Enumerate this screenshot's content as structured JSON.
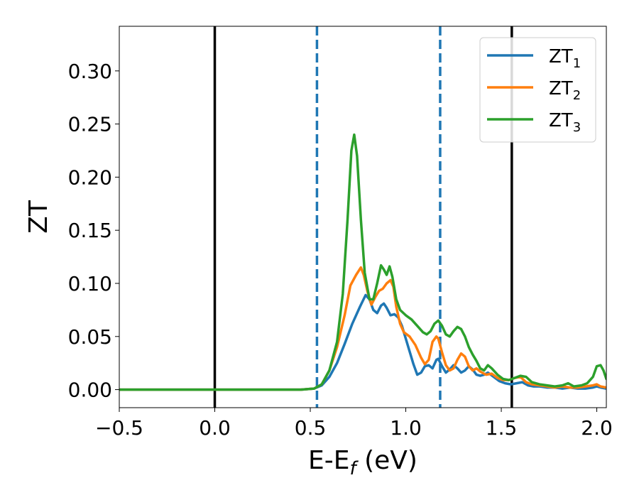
{
  "chart_data": {
    "type": "line",
    "title": "",
    "xlabel": {
      "main": "E-E",
      "sub": "f",
      "suffix": " (eV)"
    },
    "ylabel": "ZT",
    "xlim": [
      -0.5,
      2.05
    ],
    "ylim": [
      -0.017,
      0.342
    ],
    "xticks": [
      {
        "value": -0.5,
        "label": "−0.5"
      },
      {
        "value": 0.0,
        "label": "0.0"
      },
      {
        "value": 0.5,
        "label": "0.5"
      },
      {
        "value": 1.0,
        "label": "1.0"
      },
      {
        "value": 1.5,
        "label": "1.5"
      },
      {
        "value": 2.0,
        "label": "2.0"
      }
    ],
    "yticks": [
      {
        "value": 0.0,
        "label": "0.00"
      },
      {
        "value": 0.05,
        "label": "0.05"
      },
      {
        "value": 0.1,
        "label": "0.10"
      },
      {
        "value": 0.15,
        "label": "0.15"
      },
      {
        "value": 0.2,
        "label": "0.20"
      },
      {
        "value": 0.25,
        "label": "0.25"
      },
      {
        "value": 0.3,
        "label": "0.30"
      }
    ],
    "grid": false,
    "legend_position": "top-right",
    "vlines": [
      {
        "x": 0.0,
        "color": "#000000",
        "style": "solid"
      },
      {
        "x": 1.555,
        "color": "#000000",
        "style": "solid"
      },
      {
        "x": 0.535,
        "color": "#1f77b4",
        "style": "dashed"
      },
      {
        "x": 1.18,
        "color": "#1f77b4",
        "style": "dashed"
      }
    ],
    "series": [
      {
        "name": "ZT",
        "sub": "1",
        "color": "#1f77b4",
        "points": [
          [
            -0.5,
            0
          ],
          [
            0.45,
            0
          ],
          [
            0.52,
            0.001
          ],
          [
            0.56,
            0.004
          ],
          [
            0.6,
            0.012
          ],
          [
            0.64,
            0.025
          ],
          [
            0.68,
            0.043
          ],
          [
            0.72,
            0.062
          ],
          [
            0.76,
            0.078
          ],
          [
            0.79,
            0.089
          ],
          [
            0.81,
            0.085
          ],
          [
            0.83,
            0.075
          ],
          [
            0.85,
            0.072
          ],
          [
            0.87,
            0.079
          ],
          [
            0.885,
            0.081
          ],
          [
            0.9,
            0.077
          ],
          [
            0.92,
            0.07
          ],
          [
            0.94,
            0.071
          ],
          [
            0.96,
            0.068
          ],
          [
            0.98,
            0.06
          ],
          [
            1.0,
            0.048
          ],
          [
            1.02,
            0.036
          ],
          [
            1.04,
            0.024
          ],
          [
            1.06,
            0.014
          ],
          [
            1.08,
            0.016
          ],
          [
            1.1,
            0.022
          ],
          [
            1.12,
            0.023
          ],
          [
            1.14,
            0.02
          ],
          [
            1.16,
            0.028
          ],
          [
            1.17,
            0.029
          ],
          [
            1.19,
            0.022
          ],
          [
            1.21,
            0.016
          ],
          [
            1.23,
            0.019
          ],
          [
            1.25,
            0.023
          ],
          [
            1.27,
            0.02
          ],
          [
            1.29,
            0.016
          ],
          [
            1.31,
            0.018
          ],
          [
            1.33,
            0.022
          ],
          [
            1.35,
            0.019
          ],
          [
            1.37,
            0.014
          ],
          [
            1.39,
            0.013
          ],
          [
            1.41,
            0.014
          ],
          [
            1.43,
            0.016
          ],
          [
            1.46,
            0.012
          ],
          [
            1.49,
            0.008
          ],
          [
            1.52,
            0.006
          ],
          [
            1.55,
            0.005
          ],
          [
            1.58,
            0.006
          ],
          [
            1.61,
            0.007
          ],
          [
            1.64,
            0.004
          ],
          [
            1.67,
            0.003
          ],
          [
            1.7,
            0.003
          ],
          [
            1.74,
            0.002
          ],
          [
            1.78,
            0.002
          ],
          [
            1.82,
            0.001
          ],
          [
            1.86,
            0.002
          ],
          [
            1.9,
            0.001
          ],
          [
            1.94,
            0.001
          ],
          [
            1.98,
            0.002
          ],
          [
            2.0,
            0.003
          ],
          [
            2.02,
            0.002
          ],
          [
            2.05,
            0.001
          ]
        ]
      },
      {
        "name": "ZT",
        "sub": "2",
        "color": "#ff7f0e",
        "points": [
          [
            -0.5,
            0
          ],
          [
            0.45,
            0
          ],
          [
            0.52,
            0.001
          ],
          [
            0.56,
            0.005
          ],
          [
            0.6,
            0.018
          ],
          [
            0.64,
            0.04
          ],
          [
            0.68,
            0.07
          ],
          [
            0.71,
            0.098
          ],
          [
            0.74,
            0.108
          ],
          [
            0.765,
            0.115
          ],
          [
            0.78,
            0.108
          ],
          [
            0.8,
            0.092
          ],
          [
            0.82,
            0.08
          ],
          [
            0.84,
            0.087
          ],
          [
            0.86,
            0.093
          ],
          [
            0.88,
            0.095
          ],
          [
            0.9,
            0.1
          ],
          [
            0.92,
            0.103
          ],
          [
            0.935,
            0.097
          ],
          [
            0.95,
            0.078
          ],
          [
            0.97,
            0.062
          ],
          [
            0.99,
            0.054
          ],
          [
            1.02,
            0.05
          ],
          [
            1.05,
            0.042
          ],
          [
            1.08,
            0.03
          ],
          [
            1.1,
            0.024
          ],
          [
            1.12,
            0.028
          ],
          [
            1.14,
            0.045
          ],
          [
            1.16,
            0.05
          ],
          [
            1.17,
            0.048
          ],
          [
            1.19,
            0.035
          ],
          [
            1.21,
            0.023
          ],
          [
            1.23,
            0.018
          ],
          [
            1.25,
            0.02
          ],
          [
            1.27,
            0.028
          ],
          [
            1.29,
            0.034
          ],
          [
            1.31,
            0.031
          ],
          [
            1.33,
            0.022
          ],
          [
            1.35,
            0.018
          ],
          [
            1.37,
            0.02
          ],
          [
            1.39,
            0.017
          ],
          [
            1.42,
            0.014
          ],
          [
            1.45,
            0.015
          ],
          [
            1.48,
            0.011
          ],
          [
            1.51,
            0.009
          ],
          [
            1.54,
            0.009
          ],
          [
            1.57,
            0.011
          ],
          [
            1.6,
            0.012
          ],
          [
            1.63,
            0.007
          ],
          [
            1.66,
            0.005
          ],
          [
            1.7,
            0.004
          ],
          [
            1.74,
            0.003
          ],
          [
            1.78,
            0.002
          ],
          [
            1.82,
            0.003
          ],
          [
            1.86,
            0.002
          ],
          [
            1.9,
            0.002
          ],
          [
            1.94,
            0.003
          ],
          [
            1.98,
            0.004
          ],
          [
            2.0,
            0.005
          ],
          [
            2.02,
            0.003
          ],
          [
            2.05,
            0.002
          ]
        ]
      },
      {
        "name": "ZT",
        "sub": "3",
        "color": "#2ca02c",
        "points": [
          [
            -0.5,
            0
          ],
          [
            0.45,
            0
          ],
          [
            0.52,
            0.001
          ],
          [
            0.56,
            0.005
          ],
          [
            0.6,
            0.018
          ],
          [
            0.64,
            0.045
          ],
          [
            0.67,
            0.09
          ],
          [
            0.695,
            0.16
          ],
          [
            0.715,
            0.225
          ],
          [
            0.73,
            0.24
          ],
          [
            0.745,
            0.22
          ],
          [
            0.765,
            0.16
          ],
          [
            0.785,
            0.11
          ],
          [
            0.81,
            0.085
          ],
          [
            0.83,
            0.085
          ],
          [
            0.85,
            0.1
          ],
          [
            0.87,
            0.117
          ],
          [
            0.885,
            0.113
          ],
          [
            0.9,
            0.108
          ],
          [
            0.915,
            0.116
          ],
          [
            0.93,
            0.106
          ],
          [
            0.95,
            0.085
          ],
          [
            0.97,
            0.075
          ],
          [
            1.0,
            0.07
          ],
          [
            1.03,
            0.066
          ],
          [
            1.06,
            0.06
          ],
          [
            1.09,
            0.054
          ],
          [
            1.11,
            0.052
          ],
          [
            1.13,
            0.055
          ],
          [
            1.15,
            0.062
          ],
          [
            1.17,
            0.065
          ],
          [
            1.19,
            0.06
          ],
          [
            1.21,
            0.052
          ],
          [
            1.23,
            0.05
          ],
          [
            1.25,
            0.055
          ],
          [
            1.27,
            0.059
          ],
          [
            1.29,
            0.057
          ],
          [
            1.31,
            0.05
          ],
          [
            1.33,
            0.04
          ],
          [
            1.35,
            0.033
          ],
          [
            1.37,
            0.027
          ],
          [
            1.39,
            0.02
          ],
          [
            1.41,
            0.018
          ],
          [
            1.43,
            0.023
          ],
          [
            1.45,
            0.02
          ],
          [
            1.48,
            0.014
          ],
          [
            1.51,
            0.01
          ],
          [
            1.54,
            0.009
          ],
          [
            1.57,
            0.011
          ],
          [
            1.6,
            0.013
          ],
          [
            1.63,
            0.012
          ],
          [
            1.66,
            0.007
          ],
          [
            1.7,
            0.005
          ],
          [
            1.74,
            0.004
          ],
          [
            1.78,
            0.003
          ],
          [
            1.82,
            0.004
          ],
          [
            1.85,
            0.006
          ],
          [
            1.88,
            0.003
          ],
          [
            1.92,
            0.004
          ],
          [
            1.95,
            0.006
          ],
          [
            1.98,
            0.012
          ],
          [
            2.0,
            0.022
          ],
          [
            2.02,
            0.023
          ],
          [
            2.035,
            0.018
          ],
          [
            2.05,
            0.01
          ]
        ]
      }
    ]
  }
}
